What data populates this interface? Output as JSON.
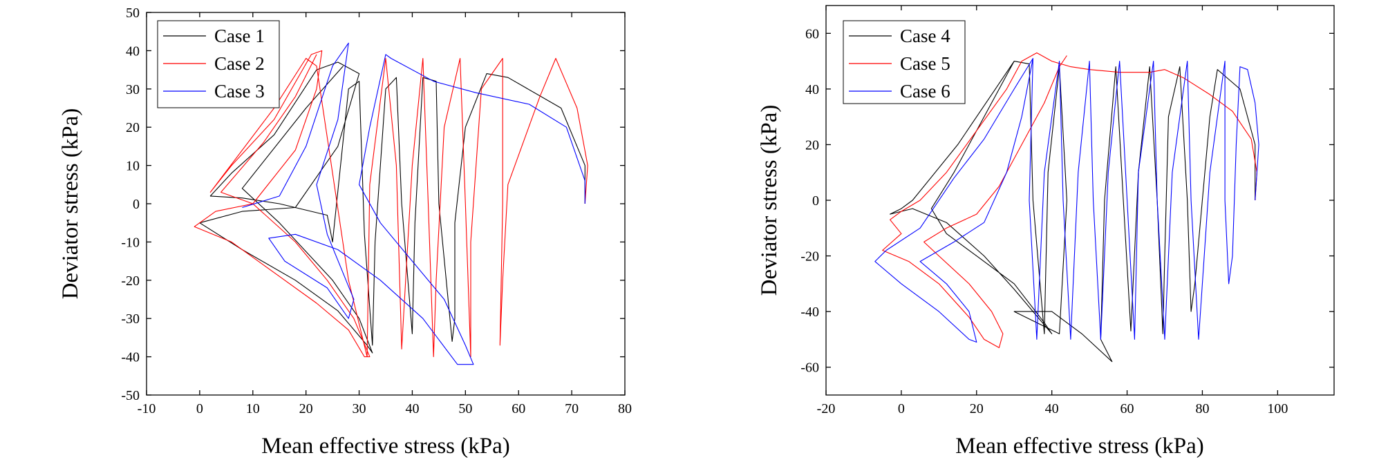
{
  "chart_data": [
    {
      "type": "line",
      "xlabel": "Mean effective stress (kPa)",
      "ylabel": "Deviator stress (kPa)",
      "xlim": [
        -10,
        80
      ],
      "ylim": [
        -50,
        50
      ],
      "xticks": [
        -10,
        0,
        10,
        20,
        30,
        40,
        50,
        60,
        70,
        80
      ],
      "yticks": [
        -50,
        -40,
        -30,
        -20,
        -10,
        0,
        10,
        20,
        30,
        40,
        50
      ],
      "legend_position": "top-left",
      "series": [
        {
          "name": "Case 1",
          "color": "#000000",
          "points": [
            [
              72.5,
              0
            ],
            [
              72.5,
              10
            ],
            [
              68,
              25
            ],
            [
              58,
              33
            ],
            [
              54,
              34
            ],
            [
              50,
              20
            ],
            [
              48,
              -5
            ],
            [
              48,
              -30
            ],
            [
              47.5,
              -36
            ],
            [
              45,
              0
            ],
            [
              44.5,
              32
            ],
            [
              42,
              33
            ],
            [
              40.5,
              -5
            ],
            [
              40,
              -34
            ],
            [
              38,
              0
            ],
            [
              37,
              33
            ],
            [
              35,
              30
            ],
            [
              33,
              -10
            ],
            [
              32.5,
              -37
            ],
            [
              31,
              -8
            ],
            [
              30,
              32
            ],
            [
              28,
              30
            ],
            [
              25,
              -10
            ],
            [
              24,
              -3
            ],
            [
              15,
              0
            ],
            [
              8,
              1.5
            ],
            [
              2,
              2
            ],
            [
              6,
              8
            ],
            [
              14,
              18
            ],
            [
              22,
              35
            ],
            [
              26,
              37
            ],
            [
              30,
              34
            ],
            [
              26,
              15
            ],
            [
              18,
              -1
            ],
            [
              8,
              -2
            ],
            [
              0,
              -5
            ],
            [
              8,
              -12
            ],
            [
              18,
              -20
            ],
            [
              26,
              -28
            ],
            [
              31.5,
              -37
            ],
            [
              32.5,
              -39
            ],
            [
              30,
              -30
            ],
            [
              25,
              -20
            ],
            [
              15,
              -5
            ],
            [
              8,
              4
            ],
            [
              20,
              25
            ],
            [
              27,
              36
            ]
          ]
        },
        {
          "name": "Case 2",
          "color": "#ff0000",
          "points": [
            [
              72.5,
              0
            ],
            [
              73,
              10
            ],
            [
              71,
              25
            ],
            [
              67,
              38
            ],
            [
              64,
              28
            ],
            [
              58,
              5
            ],
            [
              57,
              -20
            ],
            [
              56.5,
              -37
            ],
            [
              57,
              0
            ],
            [
              57,
              38
            ],
            [
              53,
              30
            ],
            [
              51,
              -10
            ],
            [
              51,
              -40
            ],
            [
              50,
              0
            ],
            [
              49,
              38
            ],
            [
              46,
              20
            ],
            [
              44.5,
              -20
            ],
            [
              44,
              -40
            ],
            [
              43,
              0
            ],
            [
              42,
              38
            ],
            [
              40,
              10
            ],
            [
              38,
              -38
            ],
            [
              37,
              10
            ],
            [
              35,
              38
            ],
            [
              32,
              5
            ],
            [
              31.5,
              -40
            ],
            [
              28,
              -20
            ],
            [
              22,
              36
            ],
            [
              20,
              38
            ],
            [
              14,
              25
            ],
            [
              2,
              3
            ],
            [
              6,
              10
            ],
            [
              14,
              22
            ],
            [
              21,
              39
            ],
            [
              23,
              40
            ],
            [
              22,
              30
            ],
            [
              18,
              14
            ],
            [
              10,
              0
            ],
            [
              3,
              -2
            ],
            [
              -1,
              -6
            ],
            [
              6,
              -10
            ],
            [
              14,
              -18
            ],
            [
              22,
              -26
            ],
            [
              28,
              -33
            ],
            [
              31,
              -40
            ],
            [
              32,
              -40
            ],
            [
              29,
              -30
            ],
            [
              24,
              -20
            ],
            [
              18,
              -10
            ],
            [
              10,
              0
            ],
            [
              4,
              3
            ],
            [
              12,
              16
            ],
            [
              18,
              28
            ],
            [
              22,
              39
            ]
          ]
        },
        {
          "name": "Case 3",
          "color": "#0000ff",
          "points": [
            [
              72.5,
              0
            ],
            [
              72.5,
              6
            ],
            [
              69,
              20
            ],
            [
              62,
              26
            ],
            [
              52,
              29
            ],
            [
              44,
              32
            ],
            [
              36,
              38
            ],
            [
              35,
              39
            ],
            [
              32,
              20
            ],
            [
              30,
              5
            ],
            [
              34,
              -5
            ],
            [
              40,
              -15
            ],
            [
              46,
              -25
            ],
            [
              50,
              -37
            ],
            [
              51.5,
              -42
            ],
            [
              48.5,
              -42
            ],
            [
              42,
              -30
            ],
            [
              34,
              -20
            ],
            [
              26,
              -12
            ],
            [
              18,
              -8
            ],
            [
              13,
              -9
            ],
            [
              16,
              -15
            ],
            [
              24,
              -22
            ],
            [
              28,
              -30
            ],
            [
              29,
              -25
            ],
            [
              24,
              -8
            ],
            [
              22,
              5
            ],
            [
              26,
              22
            ],
            [
              28,
              42
            ],
            [
              25,
              36
            ],
            [
              20,
              15
            ],
            [
              15,
              2
            ],
            [
              8,
              -1
            ]
          ]
        }
      ]
    },
    {
      "type": "line",
      "xlabel": "Mean effective stress (kPa)",
      "ylabel": "Deviator stress (kPa)",
      "xlim": [
        -20,
        115
      ],
      "ylim": [
        -70,
        70
      ],
      "xticks": [
        -20,
        0,
        20,
        40,
        60,
        80,
        100
      ],
      "yticks": [
        -60,
        -40,
        -20,
        0,
        20,
        40,
        60
      ],
      "legend_position": "top-left",
      "series": [
        {
          "name": "Case 4",
          "color": "#000000",
          "points": [
            [
              94,
              0
            ],
            [
              94,
              20
            ],
            [
              90,
              40
            ],
            [
              84,
              47
            ],
            [
              82,
              30
            ],
            [
              80,
              0
            ],
            [
              78,
              -30
            ],
            [
              77,
              -40
            ],
            [
              76,
              0
            ],
            [
              74,
              48
            ],
            [
              71,
              30
            ],
            [
              70,
              -20
            ],
            [
              69.5,
              -48
            ],
            [
              68,
              0
            ],
            [
              66,
              48
            ],
            [
              63,
              10
            ],
            [
              61,
              -47
            ],
            [
              59,
              0
            ],
            [
              57,
              48
            ],
            [
              54,
              0
            ],
            [
              53,
              -50
            ],
            [
              56,
              -58
            ],
            [
              48,
              -48
            ],
            [
              40,
              -40
            ],
            [
              30,
              -40
            ],
            [
              42,
              -48
            ],
            [
              44,
              0
            ],
            [
              42,
              48
            ],
            [
              39,
              10
            ],
            [
              38,
              -48
            ],
            [
              35,
              0
            ],
            [
              34,
              49
            ],
            [
              30,
              50
            ],
            [
              25,
              40
            ],
            [
              15,
              20
            ],
            [
              3,
              0
            ],
            [
              0,
              -3
            ],
            [
              -3,
              -5
            ],
            [
              3,
              -3
            ],
            [
              12,
              -8
            ],
            [
              22,
              -20
            ],
            [
              30,
              -32
            ],
            [
              40,
              -48
            ],
            [
              38,
              -44
            ],
            [
              30,
              -30
            ],
            [
              20,
              -20
            ],
            [
              12,
              -12
            ],
            [
              8,
              -3
            ],
            [
              14,
              10
            ],
            [
              20,
              25
            ],
            [
              26,
              40
            ],
            [
              30,
              50
            ]
          ]
        },
        {
          "name": "Case 5",
          "color": "#ff0000",
          "points": [
            [
              94,
              0
            ],
            [
              94.5,
              10
            ],
            [
              93,
              22
            ],
            [
              88,
              32
            ],
            [
              82,
              38
            ],
            [
              75,
              44
            ],
            [
              70,
              47
            ],
            [
              66,
              46
            ],
            [
              58,
              46
            ],
            [
              50,
              47
            ],
            [
              45,
              48
            ],
            [
              40,
              50
            ],
            [
              36,
              53
            ],
            [
              32,
              50
            ],
            [
              28,
              40
            ],
            [
              20,
              25
            ],
            [
              12,
              10
            ],
            [
              5,
              0
            ],
            [
              0,
              -4
            ],
            [
              -3,
              -7
            ],
            [
              0,
              -12
            ],
            [
              -5,
              -18
            ],
            [
              2,
              -22
            ],
            [
              10,
              -30
            ],
            [
              18,
              -42
            ],
            [
              22,
              -50
            ],
            [
              26,
              -53
            ],
            [
              27,
              -48
            ],
            [
              24,
              -40
            ],
            [
              18,
              -30
            ],
            [
              10,
              -20
            ],
            [
              6,
              -15
            ],
            [
              12,
              -10
            ],
            [
              20,
              -5
            ],
            [
              26,
              5
            ],
            [
              32,
              20
            ],
            [
              38,
              35
            ],
            [
              42,
              48
            ],
            [
              44,
              52
            ]
          ]
        },
        {
          "name": "Case 6",
          "color": "#0000ff",
          "points": [
            [
              94,
              0
            ],
            [
              95,
              20
            ],
            [
              94,
              35
            ],
            [
              92,
              47
            ],
            [
              90,
              48
            ],
            [
              89,
              20
            ],
            [
              88,
              -20
            ],
            [
              87,
              -30
            ],
            [
              86,
              0
            ],
            [
              86,
              50
            ],
            [
              82,
              10
            ],
            [
              79,
              -50
            ],
            [
              77,
              0
            ],
            [
              76,
              50
            ],
            [
              72,
              10
            ],
            [
              70,
              -50
            ],
            [
              68,
              0
            ],
            [
              67,
              50
            ],
            [
              63,
              10
            ],
            [
              62,
              -50
            ],
            [
              60,
              0
            ],
            [
              58,
              50
            ],
            [
              55,
              10
            ],
            [
              53,
              -50
            ],
            [
              51,
              0
            ],
            [
              50,
              50
            ],
            [
              47,
              10
            ],
            [
              45,
              -50
            ],
            [
              43,
              0
            ],
            [
              42,
              50
            ],
            [
              38,
              10
            ],
            [
              36,
              -50
            ],
            [
              34,
              0
            ],
            [
              35,
              51
            ],
            [
              30,
              40
            ],
            [
              22,
              22
            ],
            [
              14,
              8
            ],
            [
              5,
              -10
            ],
            [
              -4,
              -18
            ],
            [
              -7,
              -22
            ],
            [
              0,
              -30
            ],
            [
              10,
              -40
            ],
            [
              18,
              -50
            ],
            [
              20,
              -51
            ],
            [
              18,
              -40
            ],
            [
              12,
              -30
            ],
            [
              5,
              -22
            ],
            [
              14,
              -15
            ],
            [
              22,
              -8
            ],
            [
              28,
              10
            ],
            [
              32,
              30
            ],
            [
              35,
              51
            ]
          ]
        }
      ]
    }
  ]
}
